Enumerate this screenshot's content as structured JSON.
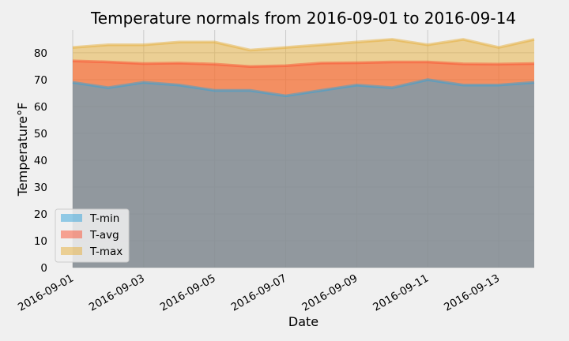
{
  "chart_data": {
    "type": "area",
    "title": "Temperature normals from 2016-09-01 to 2016-09-14",
    "xlabel": "Date",
    "ylabel": "Temperature°F",
    "x": [
      "2016-09-01",
      "2016-09-02",
      "2016-09-03",
      "2016-09-04",
      "2016-09-05",
      "2016-09-06",
      "2016-09-07",
      "2016-09-08",
      "2016-09-09",
      "2016-09-10",
      "2016-09-11",
      "2016-09-12",
      "2016-09-13",
      "2016-09-14"
    ],
    "x_tick_labels": [
      "2016-09-01",
      "2016-09-03",
      "2016-09-05",
      "2016-09-07",
      "2016-09-09",
      "2016-09-11",
      "2016-09-13"
    ],
    "y_ticks": [
      "0",
      "10",
      "20",
      "30",
      "40",
      "50",
      "60",
      "70",
      "80"
    ],
    "ylim": [
      0,
      88.5
    ],
    "stacked": false,
    "grid": true,
    "legend_position": "lower-left",
    "series": [
      {
        "name": "T-max",
        "color": "#e5ae38",
        "values": [
          82,
          83,
          83,
          84,
          84,
          81,
          82,
          83,
          84,
          85,
          83,
          85,
          82,
          85
        ]
      },
      {
        "name": "T-avg",
        "color": "#fc4f30",
        "values": [
          77,
          76.6,
          76,
          76.2,
          75.8,
          74.9,
          75.2,
          76.2,
          76.3,
          76.6,
          76.6,
          75.9,
          75.8,
          76
        ]
      },
      {
        "name": "T-min",
        "color": "#30a2da",
        "values": [
          69,
          67,
          69,
          68,
          66,
          66,
          64,
          66,
          68,
          67,
          70,
          68,
          68,
          69
        ]
      }
    ],
    "legend_order": [
      "T-min",
      "T-avg",
      "T-max"
    ]
  }
}
